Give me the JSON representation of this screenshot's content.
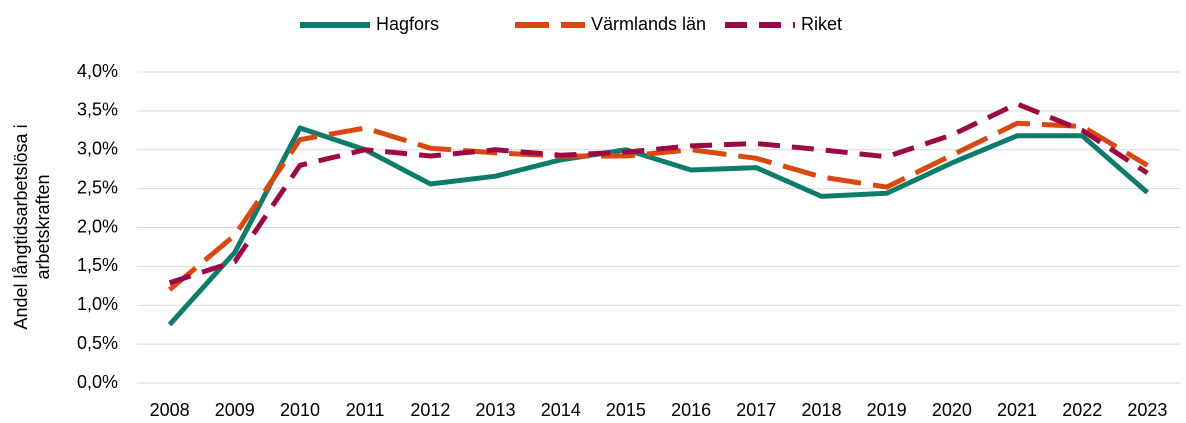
{
  "chart_data": {
    "type": "line",
    "y_label": [
      "Andel långtidsarbetslösa i",
      "arbetskraften"
    ],
    "categories": [
      "2008",
      "2009",
      "2010",
      "2011",
      "2012",
      "2013",
      "2014",
      "2015",
      "2016",
      "2017",
      "2018",
      "2019",
      "2020",
      "2021",
      "2022",
      "2023"
    ],
    "series": [
      {
        "name": "Hagfors",
        "color": "#0e7c6b",
        "line_style": "solid",
        "values": [
          0.75,
          1.68,
          3.28,
          3.0,
          2.56,
          2.66,
          2.87,
          3.0,
          2.74,
          2.77,
          2.4,
          2.44,
          2.83,
          3.18,
          3.18,
          2.45
        ]
      },
      {
        "name": "Värmlands län",
        "color": "#d9480f",
        "line_style": "long-dash",
        "values": [
          1.2,
          1.9,
          3.13,
          3.28,
          3.02,
          2.96,
          2.92,
          2.92,
          3.0,
          2.89,
          2.65,
          2.52,
          2.93,
          3.34,
          3.3,
          2.8
        ]
      },
      {
        "name": "Riket",
        "color": "#9c0a45",
        "line_style": "dash",
        "values": [
          1.29,
          1.56,
          2.8,
          3.0,
          2.92,
          3.0,
          2.93,
          2.97,
          3.05,
          3.08,
          3.0,
          2.91,
          3.19,
          3.59,
          3.25,
          2.7
        ]
      }
    ],
    "ylim": [
      0,
      4
    ],
    "yticks": [
      {
        "value": 0,
        "label": "0,0%"
      },
      {
        "value": 0.5,
        "label": "0,5%"
      },
      {
        "value": 1,
        "label": "1,0%"
      },
      {
        "value": 1.5,
        "label": "1,5%"
      },
      {
        "value": 2,
        "label": "2,0%"
      },
      {
        "value": 2.5,
        "label": "2,5%"
      },
      {
        "value": 3,
        "label": "3,0%"
      },
      {
        "value": 3.5,
        "label": "3,5%"
      },
      {
        "value": 4,
        "label": "4,0%"
      }
    ],
    "grid": true,
    "legend": "top"
  }
}
